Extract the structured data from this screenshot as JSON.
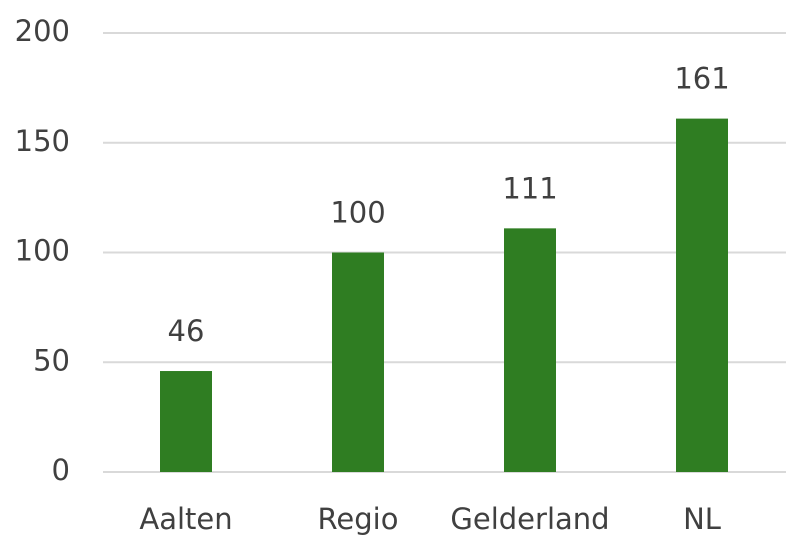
{
  "chart_data": {
    "type": "bar",
    "categories": [
      "Aalten",
      "Regio",
      "Gelderland",
      "NL"
    ],
    "values": [
      46,
      100,
      111,
      161
    ],
    "color": "#2f7d22",
    "ylim": [
      0,
      200
    ],
    "yticks": [
      0,
      50,
      100,
      150,
      200
    ],
    "grid": true
  }
}
